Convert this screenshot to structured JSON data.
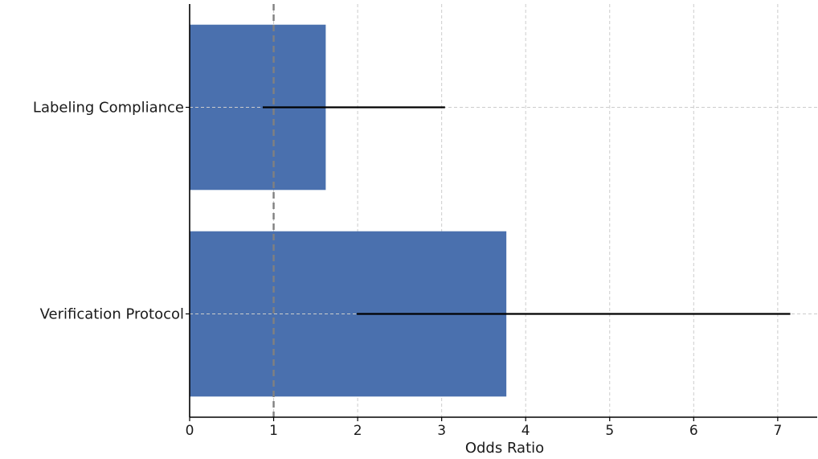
{
  "chart_data": {
    "type": "bar",
    "orientation": "horizontal",
    "categories": [
      "Labeling Compliance",
      "Verification Protocol"
    ],
    "values": [
      1.62,
      3.77
    ],
    "ci_lower": [
      0.87,
      1.99
    ],
    "ci_upper": [
      3.04,
      7.15
    ],
    "reference_line": 1,
    "xlabel": "Odds Ratio",
    "ylabel": "",
    "title": "",
    "xlim": [
      0,
      7.47
    ],
    "xticks": [
      0,
      1,
      2,
      3,
      4,
      5,
      6,
      7
    ],
    "grid": true,
    "bar_color": "#4a70ae",
    "errorbar_color": "#000000",
    "reference_line_color": "#808080",
    "grid_color": "#cccccc"
  }
}
